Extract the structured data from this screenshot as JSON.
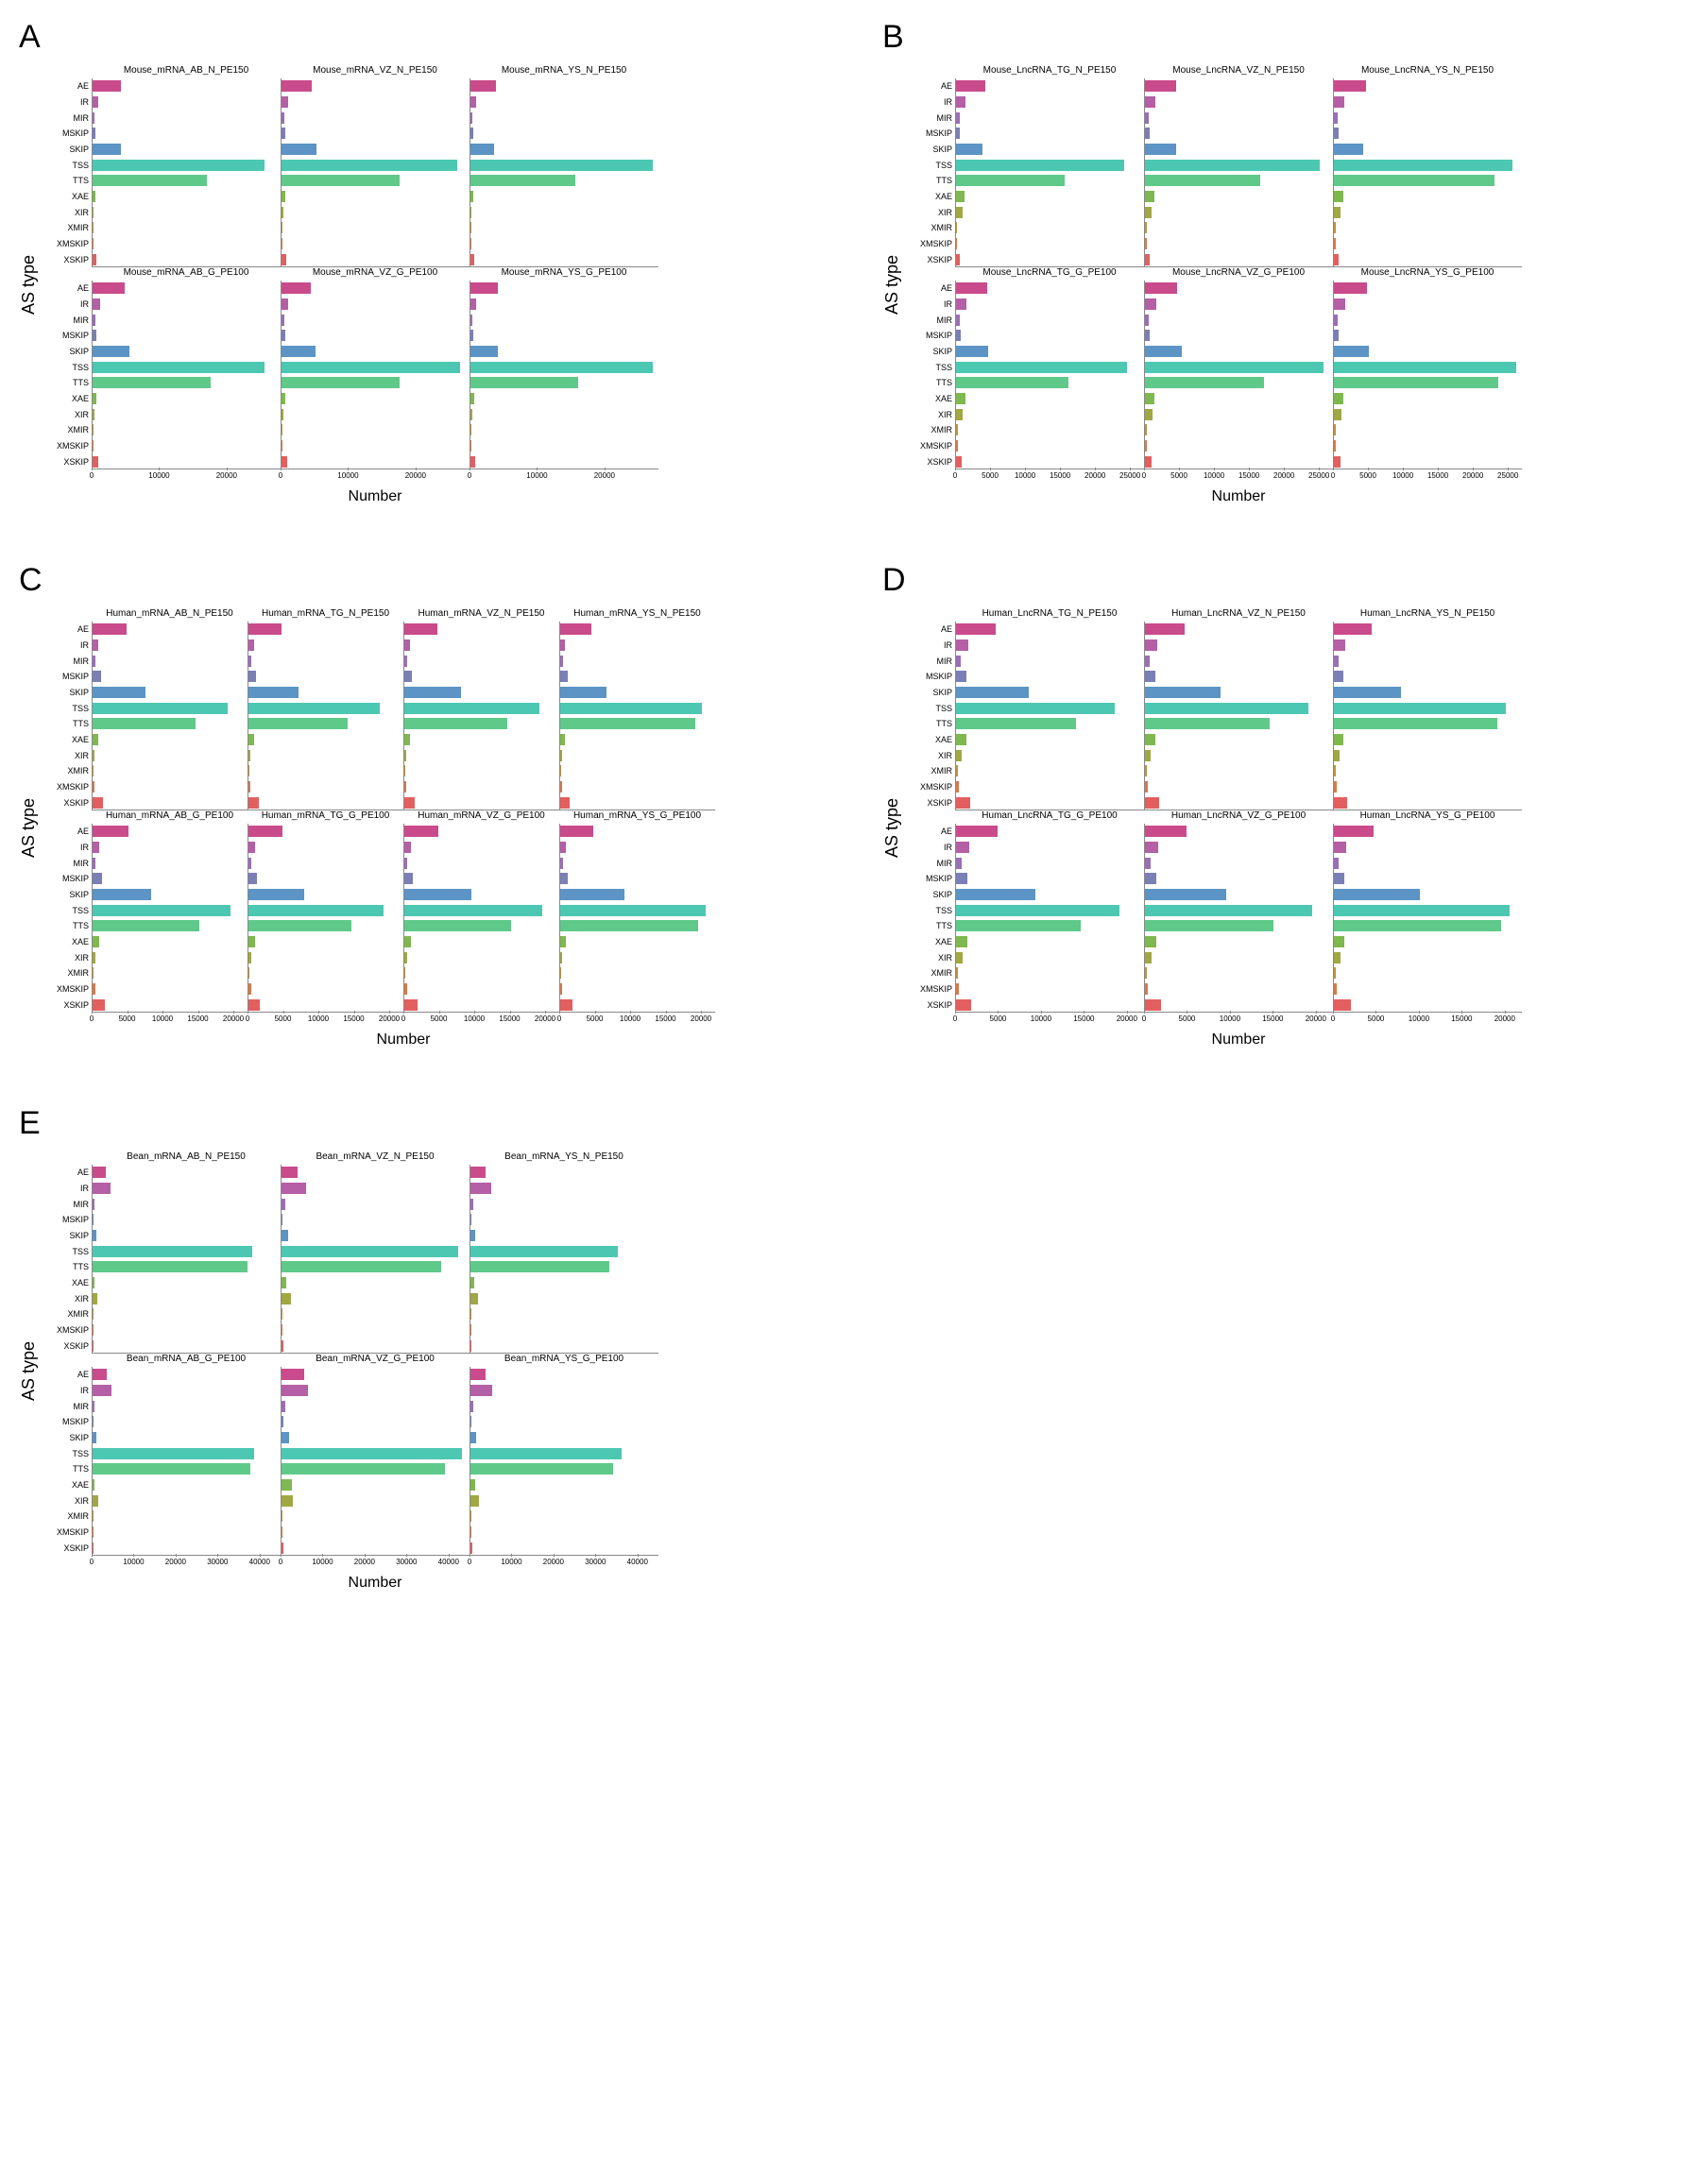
{
  "labels": {
    "ylabel": "AS type",
    "xlabel": "Number"
  },
  "categories": [
    "AE",
    "IR",
    "MIR",
    "MSKIP",
    "SKIP",
    "TSS",
    "TTS",
    "XAE",
    "XIR",
    "XMIR",
    "XMSKIP",
    "XSKIP"
  ],
  "colors": {
    "AE": "#c94b8c",
    "IR": "#b55fa6",
    "MIR": "#9a6fb5",
    "MSKIP": "#7a7fb5",
    "SKIP": "#5b94c5",
    "TSS": "#4cc8b2",
    "TTS": "#5fc98a",
    "XAE": "#7fb84f",
    "XIR": "#a0a843",
    "XMIR": "#bf9340",
    "XMSKIP": "#d87a4a",
    "XSKIP": "#e35f5f"
  },
  "panels": {
    "A": {
      "cols": 3,
      "subplot_width": 200,
      "xmax": 28000,
      "xticks": [
        0,
        10000,
        20000
      ],
      "subplots": [
        [
          {
            "title": "Mouse_mRNA_AB_N_PE150",
            "values": {
              "AE": 4200,
              "IR": 900,
              "MIR": 300,
              "MSKIP": 400,
              "SKIP": 4200,
              "TSS": 25500,
              "TTS": 17000,
              "XAE": 400,
              "XIR": 200,
              "XMIR": 100,
              "XMSKIP": 100,
              "XSKIP": 600
            }
          },
          {
            "title": "Mouse_mRNA_VZ_N_PE150",
            "values": {
              "AE": 4500,
              "IR": 1000,
              "MIR": 350,
              "MSKIP": 500,
              "SKIP": 5200,
              "TSS": 26000,
              "TTS": 17500,
              "XAE": 500,
              "XIR": 250,
              "XMIR": 120,
              "XMSKIP": 120,
              "XSKIP": 700
            }
          },
          {
            "title": "Mouse_mRNA_YS_N_PE150",
            "values": {
              "AE": 3800,
              "IR": 800,
              "MIR": 300,
              "MSKIP": 400,
              "SKIP": 3500,
              "TSS": 27000,
              "TTS": 15500,
              "XAE": 400,
              "XIR": 200,
              "XMIR": 100,
              "XMSKIP": 100,
              "XSKIP": 500
            }
          }
        ],
        [
          {
            "title": "Mouse_mRNA_AB_G_PE100",
            "values": {
              "AE": 4800,
              "IR": 1100,
              "MIR": 400,
              "MSKIP": 600,
              "SKIP": 5500,
              "TSS": 25500,
              "TTS": 17500,
              "XAE": 600,
              "XIR": 300,
              "XMIR": 150,
              "XMSKIP": 150,
              "XSKIP": 900
            }
          },
          {
            "title": "Mouse_mRNA_VZ_G_PE100",
            "values": {
              "AE": 4400,
              "IR": 1000,
              "MIR": 350,
              "MSKIP": 550,
              "SKIP": 5000,
              "TSS": 26500,
              "TTS": 17500,
              "XAE": 550,
              "XIR": 280,
              "XMIR": 140,
              "XMSKIP": 140,
              "XSKIP": 800
            }
          },
          {
            "title": "Mouse_mRNA_YS_G_PE100",
            "values": {
              "AE": 4000,
              "IR": 900,
              "MIR": 300,
              "MSKIP": 450,
              "SKIP": 4000,
              "TSS": 27000,
              "TTS": 16000,
              "XAE": 500,
              "XIR": 250,
              "XMIR": 120,
              "XMSKIP": 120,
              "XSKIP": 700
            }
          }
        ]
      ]
    },
    "B": {
      "cols": 3,
      "subplot_width": 200,
      "xmax": 27000,
      "xticks": [
        0,
        5000,
        10000,
        15000,
        20000,
        25000
      ],
      "subplots": [
        [
          {
            "title": "Mouse_LncRNA_TG_N_PE150",
            "values": {
              "AE": 4200,
              "IR": 1400,
              "MIR": 500,
              "MSKIP": 600,
              "SKIP": 3800,
              "TSS": 24000,
              "TTS": 15500,
              "XAE": 1200,
              "XIR": 900,
              "XMIR": 200,
              "XMSKIP": 200,
              "XSKIP": 600
            }
          },
          {
            "title": "Mouse_LncRNA_VZ_N_PE150",
            "values": {
              "AE": 4500,
              "IR": 1500,
              "MIR": 550,
              "MSKIP": 650,
              "SKIP": 4500,
              "TSS": 25000,
              "TTS": 16500,
              "XAE": 1300,
              "XIR": 1000,
              "XMIR": 220,
              "XMSKIP": 220,
              "XSKIP": 700
            }
          },
          {
            "title": "Mouse_LncRNA_YS_N_PE150",
            "values": {
              "AE": 4600,
              "IR": 1500,
              "MIR": 550,
              "MSKIP": 650,
              "SKIP": 4200,
              "TSS": 25500,
              "TTS": 23000,
              "XAE": 1300,
              "XIR": 1000,
              "XMIR": 220,
              "XMSKIP": 220,
              "XSKIP": 700
            }
          }
        ],
        [
          {
            "title": "Mouse_LncRNA_TG_G_PE100",
            "values": {
              "AE": 4400,
              "IR": 1500,
              "MIR": 550,
              "MSKIP": 650,
              "SKIP": 4600,
              "TSS": 24500,
              "TTS": 16000,
              "XAE": 1300,
              "XIR": 1000,
              "XMIR": 220,
              "XMSKIP": 220,
              "XSKIP": 800
            }
          },
          {
            "title": "Mouse_LncRNA_VZ_G_PE100",
            "values": {
              "AE": 4600,
              "IR": 1600,
              "MIR": 600,
              "MSKIP": 700,
              "SKIP": 5200,
              "TSS": 25500,
              "TTS": 17000,
              "XAE": 1400,
              "XIR": 1100,
              "XMIR": 250,
              "XMSKIP": 250,
              "XSKIP": 900
            }
          },
          {
            "title": "Mouse_LncRNA_YS_G_PE100",
            "values": {
              "AE": 4700,
              "IR": 1600,
              "MIR": 600,
              "MSKIP": 700,
              "SKIP": 5000,
              "TSS": 26000,
              "TTS": 23500,
              "XAE": 1400,
              "XIR": 1100,
              "XMIR": 250,
              "XMSKIP": 250,
              "XSKIP": 900
            }
          }
        ]
      ]
    },
    "C": {
      "cols": 4,
      "subplot_width": 165,
      "xmax": 22000,
      "xticks": [
        0,
        5000,
        10000,
        15000,
        20000
      ],
      "subplots": [
        [
          {
            "title": "Human_mRNA_AB_N_PE150",
            "values": {
              "AE": 4800,
              "IR": 800,
              "MIR": 400,
              "MSKIP": 1200,
              "SKIP": 7500,
              "TSS": 19000,
              "TTS": 14500,
              "XAE": 800,
              "XIR": 300,
              "XMIR": 150,
              "XMSKIP": 300,
              "XSKIP": 1500
            }
          },
          {
            "title": "Human_mRNA_TG_N_PE150",
            "values": {
              "AE": 4600,
              "IR": 800,
              "MIR": 400,
              "MSKIP": 1100,
              "SKIP": 7000,
              "TSS": 18500,
              "TTS": 14000,
              "XAE": 800,
              "XIR": 300,
              "XMIR": 150,
              "XMSKIP": 300,
              "XSKIP": 1400
            }
          },
          {
            "title": "Human_mRNA_VZ_N_PE150",
            "values": {
              "AE": 4600,
              "IR": 800,
              "MIR": 400,
              "MSKIP": 1100,
              "SKIP": 8000,
              "TSS": 19000,
              "TTS": 14500,
              "XAE": 800,
              "XIR": 300,
              "XMIR": 150,
              "XMSKIP": 300,
              "XSKIP": 1500
            }
          },
          {
            "title": "Human_mRNA_YS_N_PE150",
            "values": {
              "AE": 4400,
              "IR": 700,
              "MIR": 350,
              "MSKIP": 1000,
              "SKIP": 6500,
              "TSS": 20000,
              "TTS": 19000,
              "XAE": 700,
              "XIR": 280,
              "XMIR": 140,
              "XMSKIP": 280,
              "XSKIP": 1300
            }
          }
        ],
        [
          {
            "title": "Human_mRNA_AB_G_PE100",
            "values": {
              "AE": 5000,
              "IR": 900,
              "MIR": 450,
              "MSKIP": 1300,
              "SKIP": 8200,
              "TSS": 19500,
              "TTS": 15000,
              "XAE": 900,
              "XIR": 350,
              "XMIR": 180,
              "XMSKIP": 350,
              "XSKIP": 1700
            }
          },
          {
            "title": "Human_mRNA_TG_G_PE100",
            "values": {
              "AE": 4800,
              "IR": 900,
              "MIR": 450,
              "MSKIP": 1200,
              "SKIP": 7800,
              "TSS": 19000,
              "TTS": 14500,
              "XAE": 900,
              "XIR": 350,
              "XMIR": 180,
              "XMSKIP": 350,
              "XSKIP": 1600
            }
          },
          {
            "title": "Human_mRNA_VZ_G_PE100",
            "values": {
              "AE": 4800,
              "IR": 900,
              "MIR": 450,
              "MSKIP": 1200,
              "SKIP": 9500,
              "TSS": 19500,
              "TTS": 15000,
              "XAE": 900,
              "XIR": 350,
              "XMIR": 180,
              "XMSKIP": 350,
              "XSKIP": 1800
            }
          },
          {
            "title": "Human_mRNA_YS_G_PE100",
            "values": {
              "AE": 4600,
              "IR": 800,
              "MIR": 400,
              "MSKIP": 1100,
              "SKIP": 9000,
              "TSS": 20500,
              "TTS": 19500,
              "XAE": 800,
              "XIR": 320,
              "XMIR": 160,
              "XMSKIP": 320,
              "XSKIP": 1700
            }
          }
        ]
      ]
    },
    "D": {
      "cols": 3,
      "subplot_width": 200,
      "xmax": 22000,
      "xticks": [
        0,
        5000,
        10000,
        15000,
        20000
      ],
      "subplots": [
        [
          {
            "title": "Human_LncRNA_TG_N_PE150",
            "values": {
              "AE": 4600,
              "IR": 1400,
              "MIR": 600,
              "MSKIP": 1200,
              "SKIP": 8500,
              "TSS": 18500,
              "TTS": 14000,
              "XAE": 1200,
              "XIR": 700,
              "XMIR": 200,
              "XMSKIP": 300,
              "XSKIP": 1600
            }
          },
          {
            "title": "Human_LncRNA_VZ_N_PE150",
            "values": {
              "AE": 4600,
              "IR": 1400,
              "MIR": 600,
              "MSKIP": 1200,
              "SKIP": 8800,
              "TSS": 19000,
              "TTS": 14500,
              "XAE": 1200,
              "XIR": 700,
              "XMIR": 200,
              "XMSKIP": 300,
              "XSKIP": 1700
            }
          },
          {
            "title": "Human_LncRNA_YS_N_PE150",
            "values": {
              "AE": 4400,
              "IR": 1300,
              "MIR": 550,
              "MSKIP": 1100,
              "SKIP": 7800,
              "TSS": 20000,
              "TTS": 19000,
              "XAE": 1100,
              "XIR": 650,
              "XMIR": 180,
              "XMSKIP": 280,
              "XSKIP": 1500
            }
          }
        ],
        [
          {
            "title": "Human_LncRNA_TG_G_PE100",
            "values": {
              "AE": 4800,
              "IR": 1500,
              "MIR": 650,
              "MSKIP": 1300,
              "SKIP": 9200,
              "TSS": 19000,
              "TTS": 14500,
              "XAE": 1300,
              "XIR": 800,
              "XMIR": 220,
              "XMSKIP": 350,
              "XSKIP": 1800
            }
          },
          {
            "title": "Human_LncRNA_VZ_G_PE100",
            "values": {
              "AE": 4800,
              "IR": 1500,
              "MIR": 650,
              "MSKIP": 1300,
              "SKIP": 9500,
              "TSS": 19500,
              "TTS": 15000,
              "XAE": 1300,
              "XIR": 800,
              "XMIR": 220,
              "XMSKIP": 350,
              "XSKIP": 1900
            }
          },
          {
            "title": "Human_LncRNA_YS_G_PE100",
            "values": {
              "AE": 4600,
              "IR": 1400,
              "MIR": 600,
              "MSKIP": 1200,
              "SKIP": 10000,
              "TSS": 20500,
              "TTS": 19500,
              "XAE": 1200,
              "XIR": 750,
              "XMIR": 200,
              "XMSKIP": 320,
              "XSKIP": 2000
            }
          }
        ]
      ]
    },
    "E": {
      "cols": 3,
      "subplot_width": 200,
      "xmax": 45000,
      "xticks": [
        0,
        10000,
        20000,
        30000,
        40000
      ],
      "subplots": [
        [
          {
            "title": "Bean_mRNA_AB_N_PE150",
            "values": {
              "AE": 3200,
              "IR": 4200,
              "MIR": 500,
              "MSKIP": 200,
              "SKIP": 800,
              "TSS": 38000,
              "TTS": 37000,
              "XAE": 400,
              "XIR": 1200,
              "XMIR": 100,
              "XMSKIP": 80,
              "XSKIP": 200
            }
          },
          {
            "title": "Bean_mRNA_VZ_N_PE150",
            "values": {
              "AE": 3800,
              "IR": 5800,
              "MIR": 800,
              "MSKIP": 300,
              "SKIP": 1500,
              "TSS": 42000,
              "TTS": 38000,
              "XAE": 1200,
              "XIR": 2200,
              "XMIR": 200,
              "XMSKIP": 120,
              "XSKIP": 400
            }
          },
          {
            "title": "Bean_mRNA_YS_N_PE150",
            "values": {
              "AE": 3500,
              "IR": 5000,
              "MIR": 600,
              "MSKIP": 250,
              "SKIP": 1200,
              "TSS": 35000,
              "TTS": 33000,
              "XAE": 1000,
              "XIR": 1800,
              "XMIR": 150,
              "XMSKIP": 100,
              "XSKIP": 300
            }
          }
        ],
        [
          {
            "title": "Bean_mRNA_AB_G_PE100",
            "values": {
              "AE": 3400,
              "IR": 4500,
              "MIR": 550,
              "MSKIP": 220,
              "SKIP": 900,
              "TSS": 38500,
              "TTS": 37500,
              "XAE": 450,
              "XIR": 1300,
              "XMIR": 120,
              "XMSKIP": 90,
              "XSKIP": 220
            }
          },
          {
            "title": "Bean_mRNA_VZ_G_PE100",
            "values": {
              "AE": 5500,
              "IR": 6200,
              "MIR": 900,
              "MSKIP": 350,
              "SKIP": 1800,
              "TSS": 43000,
              "TTS": 39000,
              "XAE": 2500,
              "XIR": 2800,
              "XMIR": 250,
              "XMSKIP": 150,
              "XSKIP": 500
            }
          },
          {
            "title": "Bean_mRNA_YS_G_PE100",
            "values": {
              "AE": 3700,
              "IR": 5200,
              "MIR": 650,
              "MSKIP": 280,
              "SKIP": 1400,
              "TSS": 36000,
              "TTS": 34000,
              "XAE": 1200,
              "XIR": 2000,
              "XMIR": 180,
              "XMSKIP": 120,
              "XSKIP": 350
            }
          }
        ]
      ]
    }
  }
}
